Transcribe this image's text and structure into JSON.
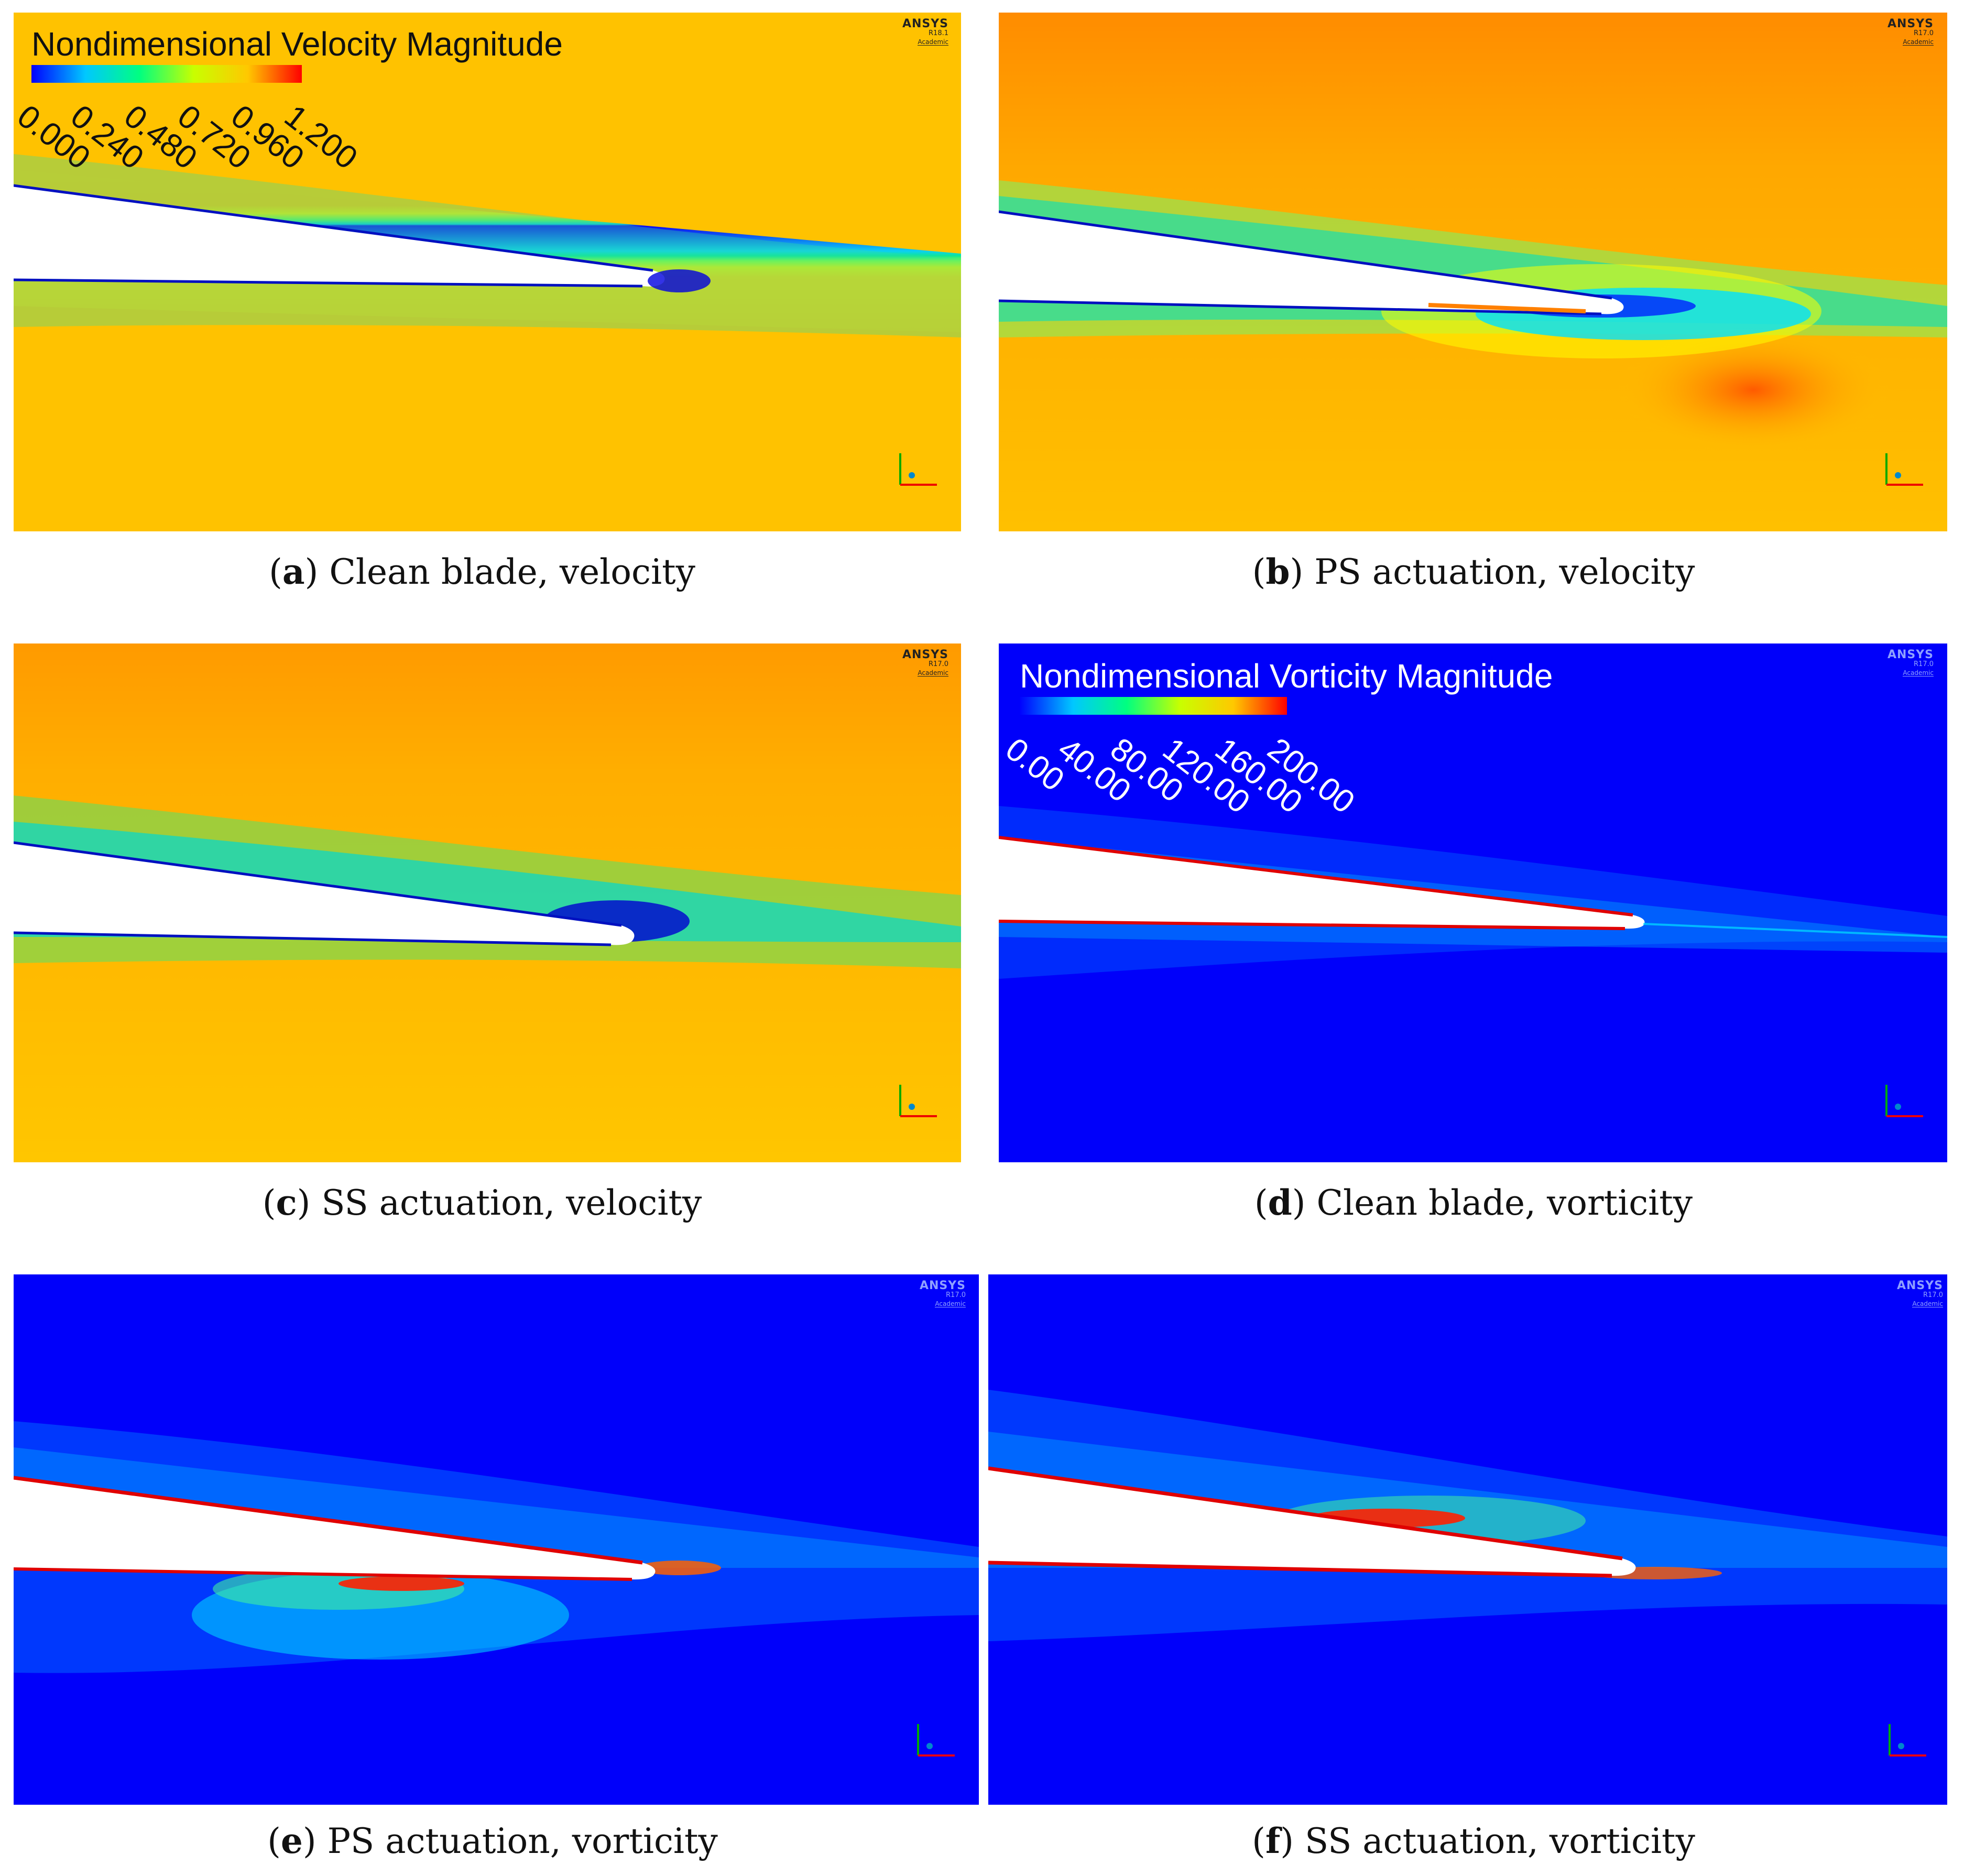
{
  "software": {
    "brand": "ANSYS",
    "edition": "Academic"
  },
  "legends": {
    "velocity": {
      "title": "Nondimensional Velocity Magnitude",
      "ticks": [
        "0.000",
        "0.240",
        "0.480",
        "0.720",
        "0.960",
        "1.200"
      ],
      "min": 0.0,
      "max": 1.2
    },
    "vorticity": {
      "title": "Nondimensional Vorticity Magnitude",
      "ticks": [
        "0.00",
        "40.00",
        "80.00",
        "120.00",
        "160.00",
        "200.00"
      ],
      "min": 0.0,
      "max": 200.0
    }
  },
  "colormap": [
    "#0000ff",
    "#00c8ff",
    "#00ff80",
    "#c8ff00",
    "#ffc800",
    "#ff0000"
  ],
  "panels": [
    {
      "letter": "a",
      "caption": "Clean blade, velocity",
      "version": "R18.1",
      "field": "velocity",
      "case": "clean"
    },
    {
      "letter": "b",
      "caption": "PS actuation, velocity",
      "version": "R17.0",
      "field": "velocity",
      "case": "ps"
    },
    {
      "letter": "c",
      "caption": "SS actuation, velocity",
      "version": "R17.0",
      "field": "velocity",
      "case": "ss"
    },
    {
      "letter": "d",
      "caption": "Clean blade, vorticity",
      "version": "R17.0",
      "field": "vorticity",
      "case": "clean"
    },
    {
      "letter": "e",
      "caption": "PS actuation, vorticity",
      "version": "R17.0",
      "field": "vorticity",
      "case": "ps"
    },
    {
      "letter": "f",
      "caption": "SS actuation, vorticity",
      "version": "R17.0",
      "field": "vorticity",
      "case": "ss"
    }
  ],
  "axis_triad": {
    "x": "X",
    "y": "Y"
  }
}
